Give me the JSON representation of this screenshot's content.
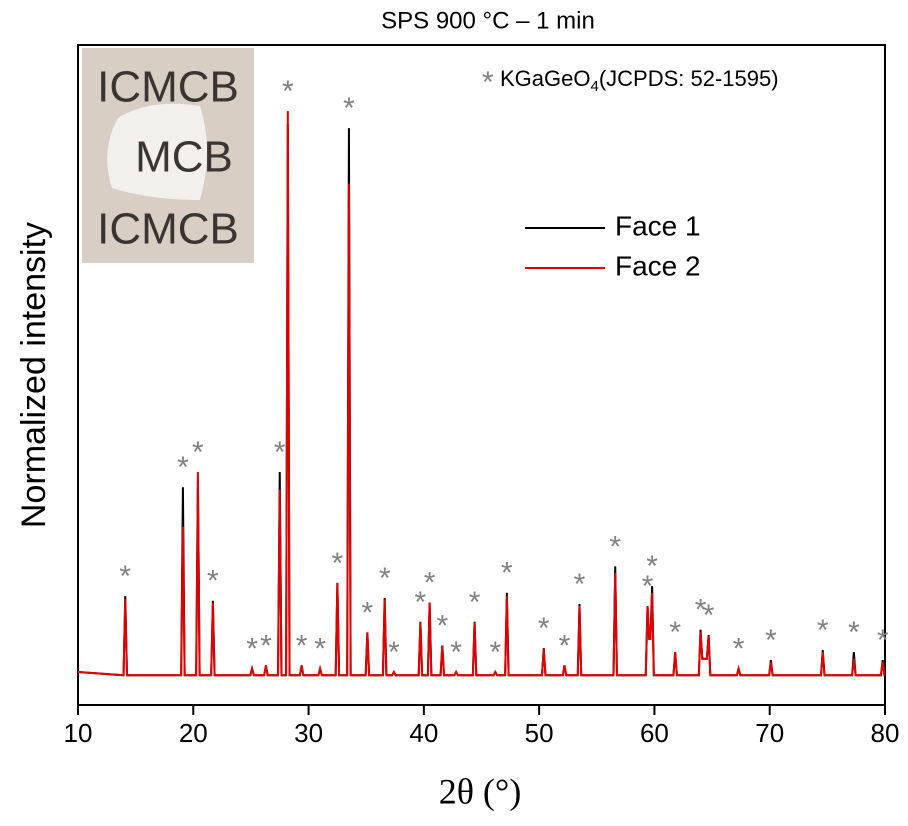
{
  "chart_data": {
    "type": "line",
    "title": "SPS 900 °C – 1 min",
    "xlabel": "2θ (°)",
    "ylabel": "Normalized intensity",
    "xlim": [
      10,
      80
    ],
    "xticks": [
      10,
      20,
      30,
      40,
      50,
      60,
      70,
      80
    ],
    "ylim": [
      0,
      1
    ],
    "legend": "upper center",
    "annotation": {
      "symbol": "*",
      "text": "KGaGeO",
      "subscript": "4",
      "suffix": "(JCPDS: 52-1595)",
      "color": "#808080"
    },
    "marker_x": [
      14.1,
      19.1,
      20.4,
      21.7,
      25.1,
      26.3,
      27.5,
      28.2,
      29.4,
      31.0,
      32.5,
      33.5,
      35.1,
      36.6,
      37.4,
      39.7,
      40.5,
      41.6,
      42.8,
      44.4,
      46.2,
      47.2,
      50.4,
      52.2,
      53.5,
      56.6,
      59.4,
      59.8,
      61.8,
      64.0,
      64.7,
      67.3,
      70.1,
      74.6,
      77.3,
      79.8
    ],
    "inset_text": [
      "ICMCB",
      "MCB",
      "ICMCB"
    ],
    "x": [
      10,
      13.95,
      14.1,
      14.25,
      18.95,
      19.1,
      19.25,
      20.25,
      20.4,
      20.55,
      21.55,
      21.7,
      21.85,
      24.95,
      25.1,
      25.25,
      26.15,
      26.3,
      26.45,
      27.35,
      27.5,
      27.65,
      28.05,
      28.2,
      28.35,
      29.25,
      29.4,
      29.55,
      30.85,
      31,
      31.15,
      32.35,
      32.5,
      32.65,
      33.35,
      33.5,
      33.65,
      34.95,
      35.1,
      35.25,
      36.45,
      36.6,
      36.75,
      37.25,
      37.4,
      37.55,
      39.55,
      39.7,
      39.85,
      40.35,
      40.5,
      40.65,
      41.45,
      41.6,
      41.75,
      42.65,
      42.8,
      42.95,
      44.25,
      44.4,
      44.55,
      46.05,
      46.2,
      46.35,
      47.05,
      47.2,
      47.35,
      50.25,
      50.4,
      50.55,
      52.05,
      52.2,
      52.35,
      53.35,
      53.5,
      53.65,
      56.45,
      56.6,
      56.75,
      59.25,
      59.4,
      59.55,
      59.65,
      59.8,
      59.95,
      61.65,
      61.8,
      61.95,
      63.85,
      64,
      64.15,
      64.55,
      64.7,
      64.85,
      67.15,
      67.3,
      67.45,
      69.95,
      70.1,
      70.25,
      74.45,
      74.6,
      74.75,
      77.15,
      77.3,
      77.45,
      79.65,
      79.8,
      79.95,
      80
    ],
    "series": [
      {
        "name": "Face 1",
        "color": "#000000",
        "values": [
          0.05,
          0.045,
          0.165,
          0.045,
          0.045,
          0.33,
          0.045,
          0.045,
          0.34,
          0.045,
          0.045,
          0.158,
          0.045,
          0.045,
          0.055,
          0.045,
          0.045,
          0.06,
          0.045,
          0.045,
          0.353,
          0.045,
          0.045,
          0.88,
          0.045,
          0.045,
          0.06,
          0.045,
          0.045,
          0.055,
          0.045,
          0.045,
          0.185,
          0.045,
          0.045,
          0.874,
          0.045,
          0.045,
          0.11,
          0.045,
          0.045,
          0.162,
          0.045,
          0.045,
          0.05,
          0.045,
          0.045,
          0.126,
          0.045,
          0.045,
          0.155,
          0.045,
          0.045,
          0.09,
          0.045,
          0.045,
          0.05,
          0.045,
          0.045,
          0.126,
          0.045,
          0.045,
          0.05,
          0.045,
          0.045,
          0.17,
          0.045,
          0.045,
          0.086,
          0.045,
          0.045,
          0.06,
          0.045,
          0.045,
          0.153,
          0.045,
          0.045,
          0.21,
          0.045,
          0.045,
          0.15,
          0.1,
          0.1,
          0.18,
          0.045,
          0.045,
          0.08,
          0.045,
          0.045,
          0.114,
          0.07,
          0.07,
          0.106,
          0.045,
          0.045,
          0.055,
          0.045,
          0.045,
          0.068,
          0.045,
          0.045,
          0.083,
          0.045,
          0.045,
          0.08,
          0.045,
          0.045,
          0.068,
          0.045,
          0.045
        ]
      },
      {
        "name": "Face 2",
        "color": "#e00000",
        "values": [
          0.05,
          0.045,
          0.16,
          0.045,
          0.045,
          0.27,
          0.045,
          0.045,
          0.353,
          0.045,
          0.045,
          0.155,
          0.045,
          0.045,
          0.055,
          0.045,
          0.045,
          0.06,
          0.045,
          0.045,
          0.326,
          0.045,
          0.045,
          0.9,
          0.045,
          0.045,
          0.06,
          0.045,
          0.045,
          0.055,
          0.045,
          0.045,
          0.185,
          0.045,
          0.045,
          0.79,
          0.045,
          0.045,
          0.11,
          0.045,
          0.045,
          0.16,
          0.045,
          0.045,
          0.05,
          0.045,
          0.045,
          0.125,
          0.045,
          0.045,
          0.155,
          0.045,
          0.045,
          0.09,
          0.045,
          0.045,
          0.05,
          0.045,
          0.045,
          0.125,
          0.045,
          0.045,
          0.05,
          0.045,
          0.045,
          0.165,
          0.045,
          0.045,
          0.085,
          0.045,
          0.045,
          0.06,
          0.045,
          0.045,
          0.15,
          0.045,
          0.045,
          0.2,
          0.045,
          0.045,
          0.15,
          0.1,
          0.1,
          0.17,
          0.045,
          0.045,
          0.08,
          0.045,
          0.045,
          0.11,
          0.07,
          0.07,
          0.105,
          0.045,
          0.045,
          0.055,
          0.045,
          0.045,
          0.065,
          0.045,
          0.045,
          0.08,
          0.045,
          0.045,
          0.07,
          0.045,
          0.045,
          0.065,
          0.045,
          0.045
        ]
      }
    ]
  }
}
